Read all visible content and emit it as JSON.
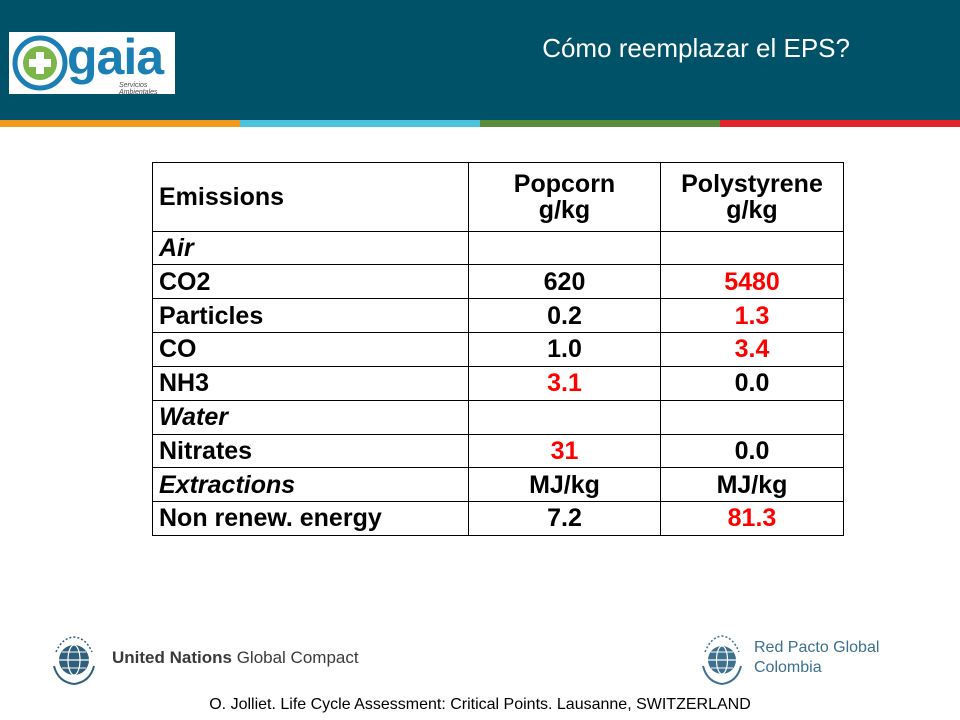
{
  "header": {
    "logo": {
      "name": "gaia",
      "subtitle": "Servicios Ambientales"
    },
    "title": "Cómo reemplazar el EPS?"
  },
  "colors": {
    "header_bg": "#005268",
    "stripe": [
      "#f29a1d",
      "#4ec1dd",
      "#5b8c3a",
      "#e3222c"
    ],
    "highlight": "#ff0000"
  },
  "table": {
    "header": {
      "col1": "Emissions",
      "col2_line1": "Popcorn",
      "col2_line2": "g/kg",
      "col3_line1": "Polystyrene",
      "col3_line2": "g/kg"
    },
    "rows": [
      {
        "label": "Air",
        "popcorn": "",
        "polystyrene": ""
      },
      {
        "label": "CO2",
        "popcorn": "620",
        "polystyrene": "5480"
      },
      {
        "label": "Particles",
        "popcorn": "0.2",
        "polystyrene": "1.3"
      },
      {
        "label": "CO",
        "popcorn": "1.0",
        "polystyrene": "3.4"
      },
      {
        "label": "NH3",
        "popcorn": "3.1",
        "polystyrene": "0.0"
      },
      {
        "label": "Water",
        "popcorn": "",
        "polystyrene": ""
      },
      {
        "label": "Nitrates",
        "popcorn": "31",
        "polystyrene": "0.0"
      },
      {
        "label": "Extractions",
        "popcorn": "MJ/kg",
        "polystyrene": "MJ/kg"
      },
      {
        "label": "Non renew. energy",
        "popcorn": "7.2",
        "polystyrene": "81.3"
      }
    ]
  },
  "logos": {
    "ungc": {
      "seal": "THE GLOBAL COMPACT",
      "bold": "United Nations",
      "light": "Global Compact"
    },
    "rpg": {
      "seal": "THE GLOBAL COMPACT",
      "line1": "Red Pacto Global",
      "line2": "Colombia"
    }
  },
  "footer": "O. Jolliet. Life Cycle Assessment: Critical Points. Lausanne, SWITZERLAND"
}
